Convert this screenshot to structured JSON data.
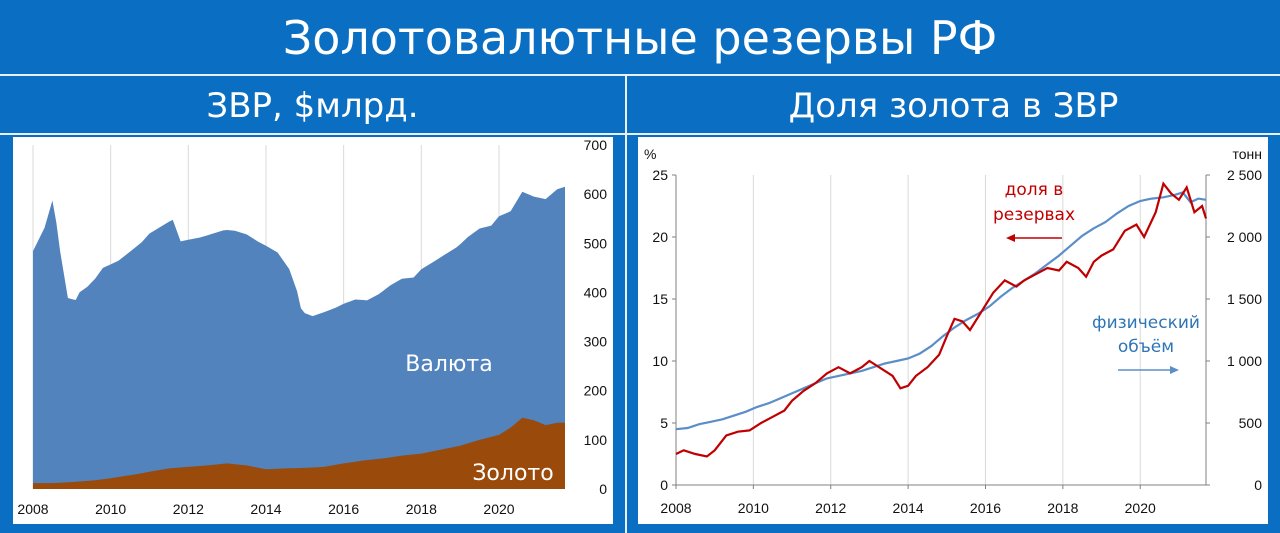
{
  "main_title": "Золотовалютные резервы РФ",
  "left_panel": {
    "title": "ЗВР, $млрд."
  },
  "right_panel": {
    "title": "Доля золота в ЗВР"
  },
  "colors": {
    "background": "#0a6fc2",
    "currency_area": "#5283bd",
    "gold_area": "#9a4a0b",
    "share_line": "#c00000",
    "volume_line": "#5b8ec8"
  },
  "chart_data": [
    {
      "type": "area",
      "stacked": true,
      "x_ticks": [
        "2008",
        "2010",
        "2012",
        "2014",
        "2016",
        "2018",
        "2020"
      ],
      "y_ticks": [
        "0",
        "100",
        "200",
        "300",
        "400",
        "500",
        "600",
        "700"
      ],
      "ylim": [
        0,
        700
      ],
      "xlim": [
        2008,
        2021.7
      ],
      "grid": "vertical",
      "y_axis_side": "right",
      "series": [
        {
          "name": "Валюта",
          "x": [
            2008.0,
            2008.3,
            2008.5,
            2008.6,
            2008.7,
            2008.9,
            2009.1,
            2009.2,
            2009.4,
            2009.6,
            2009.8,
            2010.0,
            2010.2,
            2010.5,
            2010.8,
            2011.0,
            2011.3,
            2011.6,
            2011.8,
            2012.0,
            2012.3,
            2012.6,
            2012.9,
            2013.2,
            2013.5,
            2013.8,
            2014.0,
            2014.3,
            2014.6,
            2014.8,
            2014.9,
            2015.0,
            2015.2,
            2015.5,
            2015.8,
            2016.0,
            2016.3,
            2016.6,
            2016.9,
            2017.2,
            2017.5,
            2017.8,
            2018.0,
            2018.3,
            2018.6,
            2018.9,
            2019.2,
            2019.5,
            2019.8,
            2020.0,
            2020.3,
            2020.6,
            2020.9,
            2021.2,
            2021.5,
            2021.7
          ],
          "values": [
            472,
            520,
            575,
            530,
            470,
            375,
            370,
            385,
            395,
            410,
            430,
            435,
            440,
            455,
            470,
            485,
            495,
            505,
            460,
            462,
            465,
            470,
            475,
            475,
            470,
            460,
            455,
            440,
            405,
            360,
            325,
            315,
            308,
            315,
            320,
            325,
            330,
            325,
            335,
            350,
            360,
            360,
            375,
            385,
            395,
            405,
            420,
            430,
            430,
            445,
            440,
            460,
            455,
            460,
            475,
            480
          ]
        },
        {
          "name": "Золото",
          "x": [
            2008.0,
            2008.5,
            2009.0,
            2009.5,
            2010.0,
            2010.5,
            2011.0,
            2011.5,
            2012.0,
            2012.5,
            2013.0,
            2013.5,
            2014.0,
            2014.5,
            2015.0,
            2015.5,
            2016.0,
            2016.5,
            2017.0,
            2017.5,
            2018.0,
            2018.5,
            2019.0,
            2019.5,
            2020.0,
            2020.3,
            2020.6,
            2020.9,
            2021.2,
            2021.5,
            2021.7
          ],
          "values": [
            12,
            12,
            14,
            17,
            22,
            28,
            35,
            42,
            45,
            48,
            52,
            48,
            40,
            42,
            43,
            45,
            52,
            58,
            62,
            68,
            72,
            80,
            88,
            100,
            110,
            125,
            145,
            140,
            130,
            135,
            135
          ]
        }
      ]
    },
    {
      "type": "line",
      "x_ticks": [
        "2008",
        "2010",
        "2012",
        "2014",
        "2016",
        "2018",
        "2020"
      ],
      "y_ticks_left": [
        "0",
        "5",
        "10",
        "15",
        "20",
        "25"
      ],
      "y_ticks_right": [
        "0",
        "500",
        "1 000",
        "1 500",
        "2 000",
        "2 500"
      ],
      "ylabel_left": "%",
      "ylabel_right": "тонн",
      "ylim_left": [
        0,
        25
      ],
      "ylim_right": [
        0,
        2500
      ],
      "xlim": [
        2008,
        2021.7
      ],
      "grid": "vertical",
      "series": [
        {
          "name": "доля в резервах",
          "axis": "left",
          "arrow_label": "←",
          "x": [
            2008.0,
            2008.2,
            2008.5,
            2008.8,
            2009.0,
            2009.3,
            2009.6,
            2009.9,
            2010.2,
            2010.5,
            2010.8,
            2011.0,
            2011.3,
            2011.6,
            2011.9,
            2012.2,
            2012.5,
            2012.8,
            2013.0,
            2013.2,
            2013.4,
            2013.6,
            2013.8,
            2014.0,
            2014.2,
            2014.5,
            2014.8,
            2015.0,
            2015.2,
            2015.4,
            2015.6,
            2015.9,
            2016.2,
            2016.5,
            2016.8,
            2017.0,
            2017.3,
            2017.6,
            2017.9,
            2018.1,
            2018.4,
            2018.6,
            2018.8,
            2019.0,
            2019.3,
            2019.6,
            2019.9,
            2020.1,
            2020.4,
            2020.6,
            2020.8,
            2021.0,
            2021.2,
            2021.4,
            2021.6,
            2021.7
          ],
          "values": [
            2.5,
            2.8,
            2.5,
            2.3,
            2.8,
            4.0,
            4.3,
            4.4,
            5.0,
            5.5,
            6.0,
            6.8,
            7.6,
            8.2,
            9.0,
            9.5,
            9.0,
            9.5,
            10.0,
            9.6,
            9.2,
            8.8,
            7.8,
            8.0,
            8.8,
            9.5,
            10.5,
            12.0,
            13.4,
            13.2,
            12.5,
            14.0,
            15.5,
            16.5,
            16.0,
            16.5,
            17.0,
            17.5,
            17.3,
            18.0,
            17.5,
            16.8,
            18.0,
            18.5,
            19.0,
            20.5,
            21.0,
            20.0,
            22.0,
            24.3,
            23.5,
            23.0,
            24.0,
            22.0,
            22.5,
            21.5
          ]
        },
        {
          "name": "физический объём",
          "axis": "right",
          "arrow_label": "→",
          "x": [
            2008.0,
            2008.3,
            2008.6,
            2008.9,
            2009.2,
            2009.5,
            2009.8,
            2010.1,
            2010.4,
            2010.7,
            2011.0,
            2011.3,
            2011.6,
            2011.9,
            2012.2,
            2012.5,
            2012.8,
            2013.1,
            2013.4,
            2013.7,
            2014.0,
            2014.3,
            2014.6,
            2014.9,
            2015.2,
            2015.5,
            2015.8,
            2016.1,
            2016.4,
            2016.7,
            2017.0,
            2017.3,
            2017.6,
            2017.9,
            2018.2,
            2018.5,
            2018.8,
            2019.1,
            2019.4,
            2019.7,
            2020.0,
            2020.3,
            2020.6,
            2020.9,
            2021.1,
            2021.3,
            2021.5,
            2021.7
          ],
          "values": [
            450,
            460,
            490,
            510,
            530,
            560,
            590,
            630,
            660,
            700,
            740,
            780,
            820,
            860,
            880,
            900,
            920,
            950,
            980,
            1000,
            1020,
            1060,
            1120,
            1200,
            1270,
            1330,
            1380,
            1440,
            1520,
            1590,
            1650,
            1710,
            1780,
            1850,
            1930,
            2010,
            2070,
            2120,
            2190,
            2250,
            2290,
            2310,
            2320,
            2340,
            2360,
            2280,
            2310,
            2300
          ]
        }
      ]
    }
  ],
  "annotations": {
    "currency_label": "Валюта",
    "gold_label": "Золото",
    "share_label_line1": "доля в",
    "share_label_line2": "резервах",
    "volume_label_line1": "физический",
    "volume_label_line2": "объём"
  }
}
